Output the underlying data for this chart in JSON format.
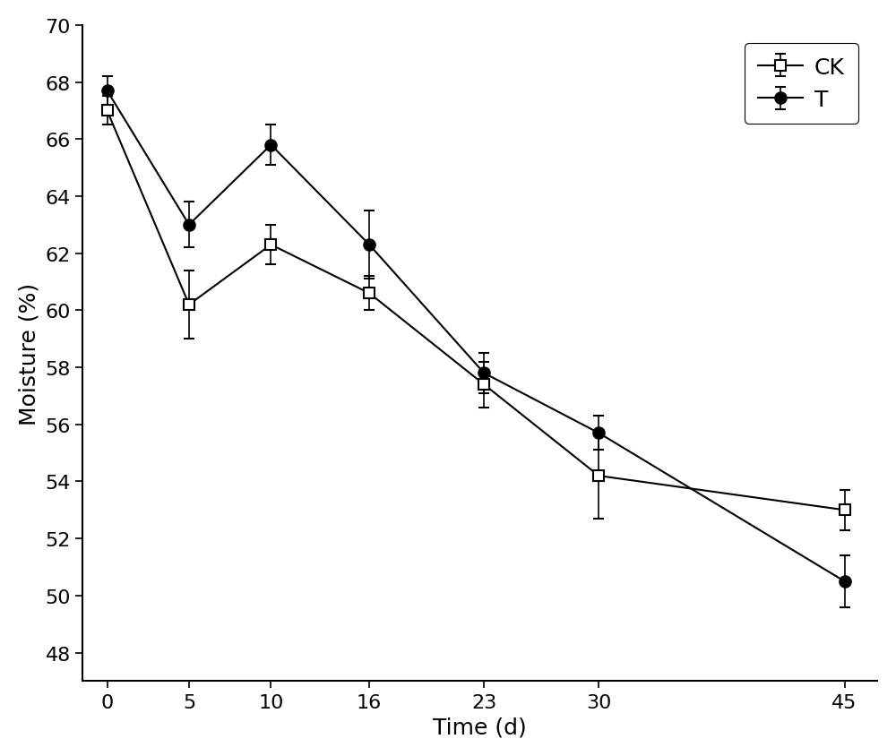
{
  "x": [
    0,
    5,
    10,
    16,
    23,
    30,
    45
  ],
  "CK_y": [
    67.0,
    60.2,
    62.3,
    60.6,
    57.4,
    54.2,
    53.0
  ],
  "CK_err": [
    0.5,
    1.2,
    0.7,
    0.6,
    0.8,
    1.5,
    0.7
  ],
  "T_y": [
    67.7,
    63.0,
    65.8,
    62.3,
    57.8,
    55.7,
    50.5
  ],
  "T_err": [
    0.5,
    0.8,
    0.7,
    1.2,
    0.7,
    0.6,
    0.9
  ],
  "xlabel": "Time (d)",
  "ylabel": "Moisture (%)",
  "ylim": [
    47,
    70
  ],
  "yticks": [
    48,
    50,
    52,
    54,
    56,
    58,
    60,
    62,
    64,
    66,
    68,
    70
  ],
  "xticks": [
    0,
    5,
    10,
    16,
    23,
    30,
    45
  ],
  "legend_labels": [
    "CK",
    "T"
  ],
  "line_color": "#000000",
  "CK_marker": "s",
  "T_marker": "o",
  "CK_marker_facecolor": "white",
  "T_marker_facecolor": "black",
  "marker_size": 9,
  "linewidth": 1.5,
  "capsize": 4,
  "elinewidth": 1.2,
  "legend_fontsize": 18,
  "tick_fontsize": 16,
  "label_fontsize": 18,
  "background_color": "#ffffff"
}
